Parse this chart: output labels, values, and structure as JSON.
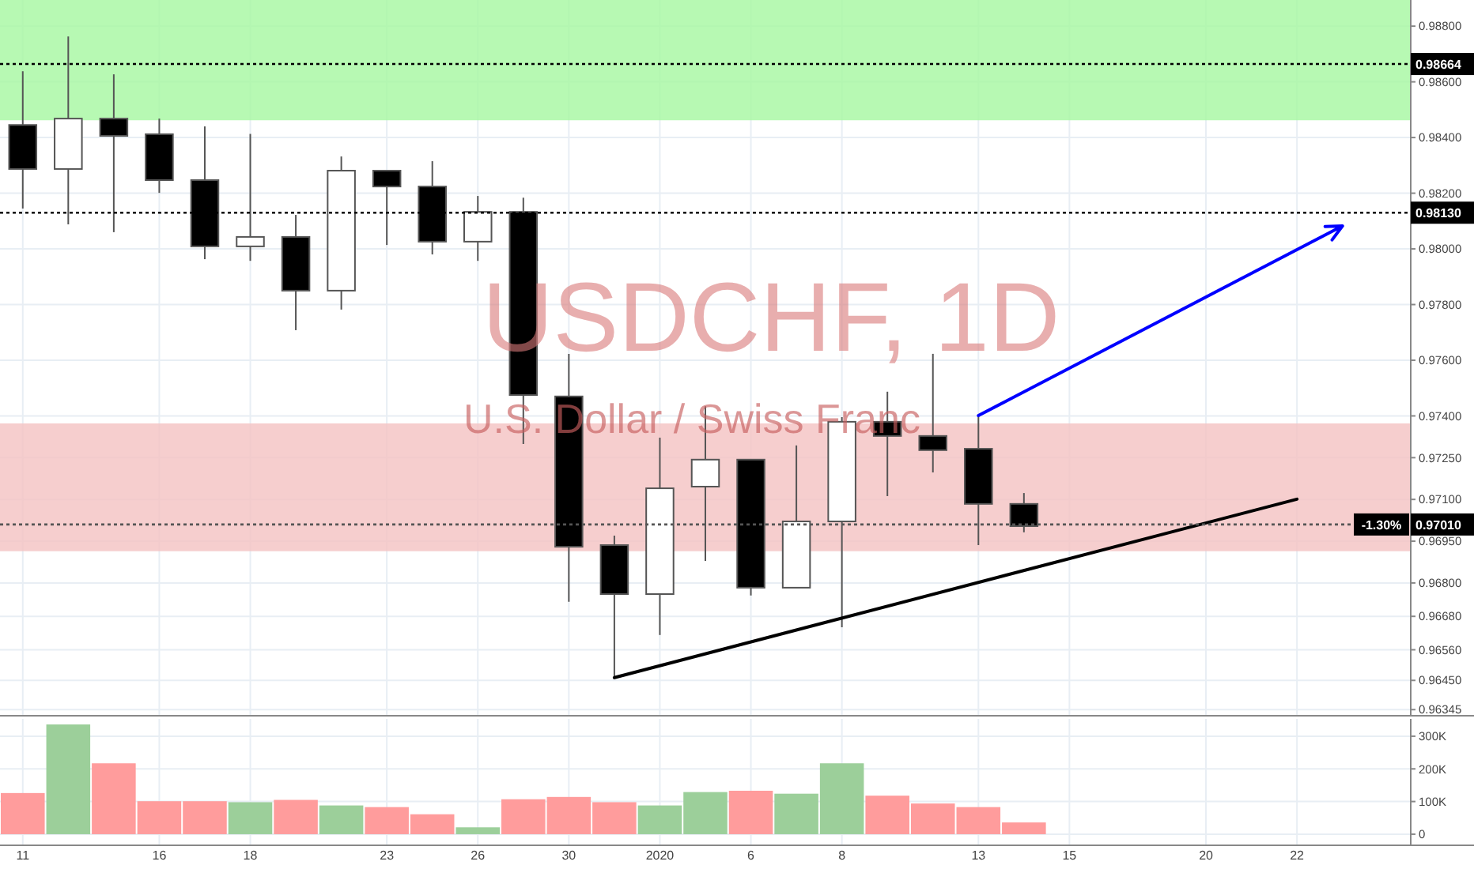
{
  "chart_data": [
    {
      "type": "candlestick",
      "title": "USDCHF, 1D",
      "subtitle": "U.S. Dollar / Swiss Franc",
      "categories": [
        "11",
        null,
        null,
        "16",
        null,
        "18",
        null,
        null,
        "23",
        null,
        "26",
        null,
        "30",
        null,
        "2020",
        null,
        "6",
        null,
        "8",
        null,
        null,
        "13",
        null,
        "15",
        null,
        null,
        "20",
        null,
        "22",
        null,
        null
      ],
      "ohlc": [
        [
          0.98445,
          0.98638,
          0.98145,
          0.98287
        ],
        [
          0.98287,
          0.98763,
          0.98088,
          0.98468
        ],
        [
          0.98468,
          0.98627,
          0.9806,
          0.98406
        ],
        [
          0.98412,
          0.98468,
          0.98201,
          0.98247
        ],
        [
          0.98247,
          0.9844,
          0.97963,
          0.98009
        ],
        [
          0.98009,
          0.98413,
          0.97957,
          0.98043
        ],
        [
          0.98043,
          0.98122,
          0.97708,
          0.9785
        ],
        [
          0.9785,
          0.98332,
          0.97782,
          0.98281
        ],
        [
          0.98281,
          0.98281,
          0.98014,
          0.98224
        ],
        [
          0.98224,
          0.98315,
          0.9798,
          0.98026
        ],
        [
          0.98026,
          0.9819,
          0.97957,
          0.98133
        ],
        [
          0.98133,
          0.98184,
          0.97299,
          0.97475
        ],
        [
          0.9747,
          0.97623,
          0.96732,
          0.9693
        ],
        [
          0.96936,
          0.9697,
          0.9646,
          0.9676
        ],
        [
          0.9676,
          0.97322,
          0.96613,
          0.9714
        ],
        [
          0.97146,
          0.97435,
          0.96879,
          0.97243
        ],
        [
          0.97243,
          0.97243,
          0.96755,
          0.96783
        ],
        [
          0.96783,
          0.97294,
          0.96783,
          0.97021
        ],
        [
          0.97021,
          0.97396,
          0.96641,
          0.97379
        ],
        [
          0.97379,
          0.97487,
          0.97112,
          0.97328
        ],
        [
          0.97328,
          0.97623,
          0.97197,
          0.97277
        ],
        [
          0.97282,
          0.97401,
          0.96936,
          0.97084
        ],
        [
          0.97084,
          0.97123,
          0.96982,
          0.97004
        ],
        null,
        null,
        null,
        null,
        null,
        null,
        null,
        null
      ],
      "colors": [
        "#000000",
        "#ffffff",
        "#000000",
        "#000000",
        "#000000",
        "#ffffff",
        "#000000",
        "#ffffff",
        "#000000",
        "#000000",
        "#ffffff",
        "#000000",
        "#000000",
        "#000000",
        "#ffffff",
        "#ffffff",
        "#000000",
        "#ffffff",
        "#ffffff",
        "#000000",
        "#000000",
        "#000000",
        "#000000",
        null,
        null,
        null,
        null,
        null,
        null,
        null,
        null
      ],
      "ylim": [
        0.96323,
        0.98894
      ],
      "yticks": [
        {
          "value": 0.988,
          "label": "0.98800"
        },
        {
          "value": 0.986,
          "label": "0.98600"
        },
        {
          "value": 0.984,
          "label": "0.98400"
        },
        {
          "value": 0.982,
          "label": "0.98200"
        },
        {
          "value": 0.98,
          "label": "0.98000"
        },
        {
          "value": 0.978,
          "label": "0.97800"
        },
        {
          "value": 0.976,
          "label": "0.97600"
        },
        {
          "value": 0.974,
          "label": "0.97400"
        },
        {
          "value": 0.9725,
          "label": "0.97250"
        },
        {
          "value": 0.971,
          "label": "0.97100"
        },
        {
          "value": 0.9695,
          "label": "0.96950"
        },
        {
          "value": 0.968,
          "label": "0.96800"
        },
        {
          "value": 0.9668,
          "label": "0.96680"
        },
        {
          "value": 0.9656,
          "label": "0.96560"
        },
        {
          "value": 0.9645,
          "label": "0.96450"
        },
        {
          "value": 0.96345,
          "label": "0.96345"
        }
      ],
      "tick_labels": "y",
      "grid": true,
      "bands": [
        {
          "axis": "y",
          "from": 0.98462,
          "to": 0.98894,
          "color": "#a5f7a0"
        },
        {
          "axis": "y",
          "from": 0.96914,
          "to": 0.97373,
          "color": "#f4c2c2"
        }
      ],
      "ref_lines": [
        {
          "axis": "y",
          "value": 0.98664,
          "line_style": "dotted",
          "color": "#000000",
          "label": "0.98664"
        },
        {
          "axis": "y",
          "value": 0.9813,
          "line_style": "dotted",
          "color": "#000000",
          "label": "0.98130"
        },
        {
          "axis": "y",
          "value": 0.9701,
          "line_style": "dotted",
          "color": "#555555",
          "label": "0.97010"
        }
      ],
      "annotations": [
        {
          "text": "-1.30%",
          "y": 0.9701
        }
      ],
      "series": [
        {
          "type": "line",
          "color": "#000000",
          "values": [
            null,
            null,
            null,
            null,
            null,
            null,
            null,
            null,
            null,
            null,
            null,
            null,
            null,
            0.9646,
            null,
            null,
            null,
            null,
            null,
            null,
            null,
            null,
            null,
            null,
            null,
            null,
            null,
            null,
            0.97101,
            null,
            null
          ]
        }
      ]
    },
    {
      "type": "bar",
      "categories": [
        "11",
        null,
        null,
        "16",
        null,
        "18",
        null,
        null,
        "23",
        null,
        "26",
        null,
        "30",
        null,
        "2020",
        null,
        "6",
        null,
        "8",
        null,
        null,
        "13",
        null,
        "15",
        null,
        null,
        "20",
        null,
        "22",
        null,
        null
      ],
      "values": [
        126,
        336,
        217,
        101,
        101,
        98,
        105,
        88,
        83,
        61,
        21,
        107,
        114,
        98,
        88,
        129,
        133,
        124,
        217,
        118,
        94,
        83,
        36,
        null,
        null,
        null,
        null,
        null,
        null,
        null,
        null
      ],
      "colors": [
        "#ff9c9c",
        "#9ccf9a",
        "#ff9c9c",
        "#ff9c9c",
        "#ff9c9c",
        "#9ccf9a",
        "#ff9c9c",
        "#9ccf9a",
        "#ff9c9c",
        "#ff9c9c",
        "#9ccf9a",
        "#ff9c9c",
        "#ff9c9c",
        "#ff9c9c",
        "#9ccf9a",
        "#9ccf9a",
        "#ff9c9c",
        "#9ccf9a",
        "#9ccf9a",
        "#ff9c9c",
        "#ff9c9c",
        "#ff9c9c",
        "#ff9c9c",
        null,
        null,
        null,
        null,
        null,
        null,
        null,
        null
      ],
      "ylim": [
        -34,
        353
      ],
      "yticks": [
        {
          "value": 0,
          "label": "0"
        },
        {
          "value": 100,
          "label": "100K"
        },
        {
          "value": 200,
          "label": "200K"
        },
        {
          "value": 300,
          "label": "300K"
        }
      ],
      "grid": true
    }
  ]
}
